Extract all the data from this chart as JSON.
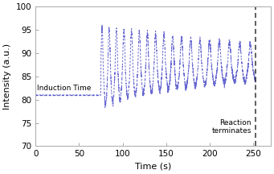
{
  "xlim": [
    0,
    270
  ],
  "ylim": [
    70,
    100
  ],
  "xticks": [
    0,
    50,
    100,
    150,
    200,
    250
  ],
  "yticks": [
    70,
    75,
    80,
    85,
    90,
    95,
    100
  ],
  "xlabel": "Time (s)",
  "ylabel": "Intensity (a.u.)",
  "induction_x_start": 0,
  "induction_x_end": 75,
  "induction_y": 81.0,
  "induction_label": "Induction Time",
  "reaction_x": 253,
  "reaction_label": "Reaction\nterminates",
  "line_color": "#5555cc",
  "vline_color": "#333333",
  "background_color": "#ffffff",
  "figsize": [
    3.41,
    2.16
  ],
  "dpi": 100
}
